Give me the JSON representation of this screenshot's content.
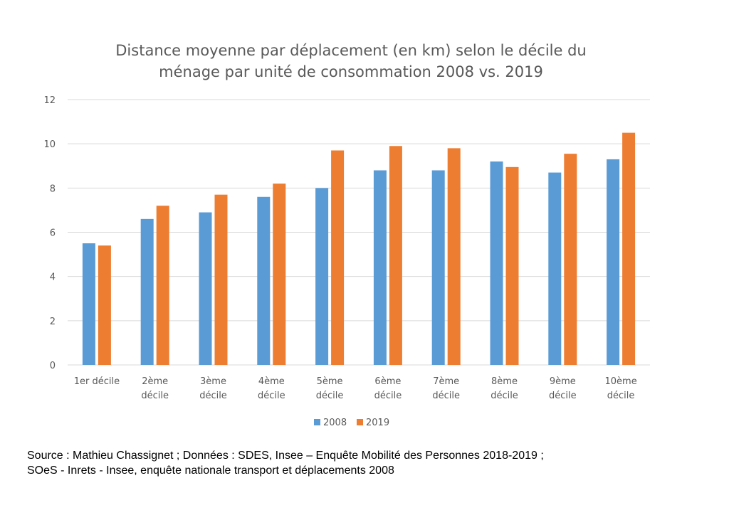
{
  "chart_data": {
    "type": "bar",
    "title_lines": [
      "Distance moyenne par déplacement (en km) selon le décile du",
      "ménage par unité de consommation 2008 vs. 2019"
    ],
    "categories": [
      [
        "1er décile"
      ],
      [
        "2ème",
        "décile"
      ],
      [
        "3ème",
        "décile"
      ],
      [
        "4ème",
        "décile"
      ],
      [
        "5ème",
        "décile"
      ],
      [
        "6ème",
        "décile"
      ],
      [
        "7ème",
        "décile"
      ],
      [
        "8ème",
        "décile"
      ],
      [
        "9ème",
        "décile"
      ],
      [
        "10ème",
        "décile"
      ]
    ],
    "series": [
      {
        "name": "2008",
        "color": "#5B9BD5",
        "values": [
          5.5,
          6.6,
          6.9,
          7.6,
          8.0,
          8.8,
          8.8,
          9.2,
          8.7,
          9.3
        ]
      },
      {
        "name": "2019",
        "color": "#ED7D31",
        "values": [
          5.4,
          7.2,
          7.7,
          8.2,
          9.7,
          9.9,
          9.8,
          8.95,
          9.55,
          10.5
        ]
      }
    ],
    "ylim": [
      0,
      12
    ],
    "yticks": [
      "0",
      "2",
      "4",
      "6",
      "8",
      "10",
      "12"
    ],
    "grid": true,
    "legend_position": "bottom"
  },
  "source": {
    "line1": "Source : Mathieu Chassignet ; Données : SDES, Insee – Enquête Mobilité des Personnes 2018-2019 ;",
    "line2": "SOeS - Inrets - Insee, enquête nationale transport et déplacements 2008"
  }
}
